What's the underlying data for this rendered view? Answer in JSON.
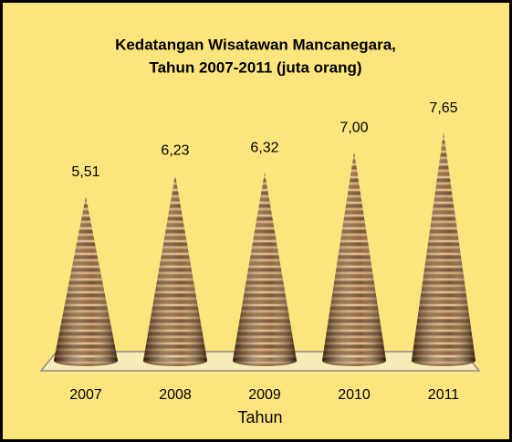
{
  "chart_data": {
    "type": "cone-bar",
    "title": [
      "Kedatangan Wisatawan Mancanegara,",
      "Tahun 2007-2011 (juta orang)"
    ],
    "categories": [
      "2007",
      "2008",
      "2009",
      "2010",
      "2011"
    ],
    "values": [
      5.51,
      6.23,
      6.32,
      7.0,
      7.65
    ],
    "value_labels": [
      "5,51",
      "6,23",
      "6,32",
      "7,00",
      "7,65"
    ],
    "x_label": "Tahun",
    "color": "#8b5a2b"
  }
}
